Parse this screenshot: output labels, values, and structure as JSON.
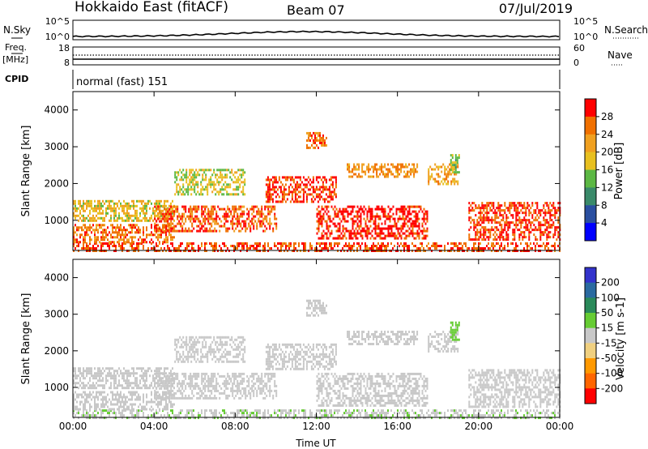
{
  "header": {
    "station": "Hokkaido East (fitACF)",
    "beam": "Beam 07",
    "date": "07/Jul/2019"
  },
  "noise_panel": {
    "left_label": "N.Sky",
    "right_label": "N.Search",
    "tick_top": "10^5",
    "tick_bottom": "10^0"
  },
  "freq_panel": {
    "left_label_top": "Freq.",
    "left_label_unit": "[MHz]",
    "left_tick_top": "18",
    "left_tick_bottom": "8",
    "right_label": "Nave",
    "right_tick_top": "60",
    "right_tick_bottom": "0"
  },
  "cpid_panel": {
    "label": "CPID",
    "mode": "normal (fast) 151"
  },
  "colors": {
    "power_scale": [
      "#0000ff",
      "#2a4fa0",
      "#3a8a6a",
      "#5cb844",
      "#e8c020",
      "#f0a020",
      "#f07000",
      "#ff0000"
    ],
    "velocity_scale": [
      "#3333cc",
      "#2a6aa0",
      "#2a8a5a",
      "#66cc33",
      "#c8c8c8",
      "#f0d080",
      "#ff9900",
      "#ff6600",
      "#ff0000"
    ]
  },
  "chart_data": [
    {
      "type": "heatmap",
      "name": "power",
      "xlabel": "Time UT",
      "ylabel": "Slant Range [km]",
      "xlim": [
        0,
        24
      ],
      "ylim": [
        180,
        4500
      ],
      "x_ticks": [
        "00:00",
        "04:00",
        "08:00",
        "12:00",
        "16:00",
        "20:00",
        "00:00"
      ],
      "y_ticks": [
        1000,
        2000,
        3000,
        4000
      ],
      "colorbar_label": "Power [dB]",
      "colorbar_ticks": [
        "4",
        "8",
        "12",
        "16",
        "20",
        "24",
        "28"
      ],
      "colorbar_range": [
        0,
        30
      ],
      "regions": [
        {
          "t0": 0,
          "t1": 24,
          "r0": 200,
          "r1": 400,
          "value": 26
        },
        {
          "t0": 0,
          "t1": 5,
          "r0": 400,
          "r1": 900,
          "value": 24
        },
        {
          "t0": 0,
          "t1": 5,
          "r0": 1000,
          "r1": 1550,
          "value": 18
        },
        {
          "t0": 4,
          "t1": 10,
          "r0": 700,
          "r1": 1400,
          "value": 25
        },
        {
          "t0": 9.5,
          "t1": 13,
          "r0": 1500,
          "r1": 2200,
          "value": 27
        },
        {
          "t0": 12,
          "t1": 17.5,
          "r0": 500,
          "r1": 1400,
          "value": 28
        },
        {
          "t0": 13.5,
          "t1": 17,
          "r0": 2200,
          "r1": 2550,
          "value": 22
        },
        {
          "t0": 17.5,
          "t1": 19,
          "r0": 2000,
          "r1": 2550,
          "value": 20
        },
        {
          "t0": 18.6,
          "t1": 19,
          "r0": 2300,
          "r1": 2800,
          "value": 14
        },
        {
          "t0": 19.5,
          "t1": 24,
          "r0": 500,
          "r1": 1500,
          "value": 27
        },
        {
          "t0": 5,
          "t1": 8.5,
          "r0": 1700,
          "r1": 2400,
          "value": 16
        },
        {
          "t0": 11.5,
          "t1": 12.5,
          "r0": 3000,
          "r1": 3400,
          "value": 24
        }
      ]
    },
    {
      "type": "heatmap",
      "name": "velocity",
      "xlabel": "Time UT",
      "ylabel": "Slant Range [km]",
      "xlim": [
        0,
        24
      ],
      "ylim": [
        180,
        4500
      ],
      "x_ticks": [
        "00:00",
        "04:00",
        "08:00",
        "12:00",
        "16:00",
        "20:00",
        "00:00"
      ],
      "y_ticks": [
        1000,
        2000,
        3000,
        4000
      ],
      "colorbar_label": "Velocity [m s-1]",
      "colorbar_ticks": [
        "200",
        "100",
        "50",
        "15",
        "-15",
        "-50",
        "-100",
        "-200"
      ],
      "colorbar_range": [
        -250,
        250
      ],
      "regions": [
        {
          "t0": 0,
          "t1": 24,
          "r0": 200,
          "r1": 400,
          "value": 20
        },
        {
          "t0": 0,
          "t1": 5,
          "r0": 400,
          "r1": 900,
          "value": 0
        },
        {
          "t0": 0,
          "t1": 5,
          "r0": 1000,
          "r1": 1550,
          "value": 0
        },
        {
          "t0": 4,
          "t1": 10,
          "r0": 700,
          "r1": 1400,
          "value": 0
        },
        {
          "t0": 9.5,
          "t1": 13,
          "r0": 1500,
          "r1": 2200,
          "value": 0
        },
        {
          "t0": 12,
          "t1": 17.5,
          "r0": 500,
          "r1": 1400,
          "value": 0
        },
        {
          "t0": 13.5,
          "t1": 17,
          "r0": 2200,
          "r1": 2550,
          "value": 0
        },
        {
          "t0": 17.5,
          "t1": 19,
          "r0": 2000,
          "r1": 2550,
          "value": 0
        },
        {
          "t0": 18.6,
          "t1": 19,
          "r0": 2300,
          "r1": 2800,
          "value": 40
        },
        {
          "t0": 19.5,
          "t1": 24,
          "r0": 500,
          "r1": 1500,
          "value": 0
        },
        {
          "t0": 5,
          "t1": 8.5,
          "r0": 1700,
          "r1": 2400,
          "value": 0
        },
        {
          "t0": 11.5,
          "t1": 12.5,
          "r0": 3000,
          "r1": 3400,
          "value": 0
        }
      ]
    }
  ]
}
